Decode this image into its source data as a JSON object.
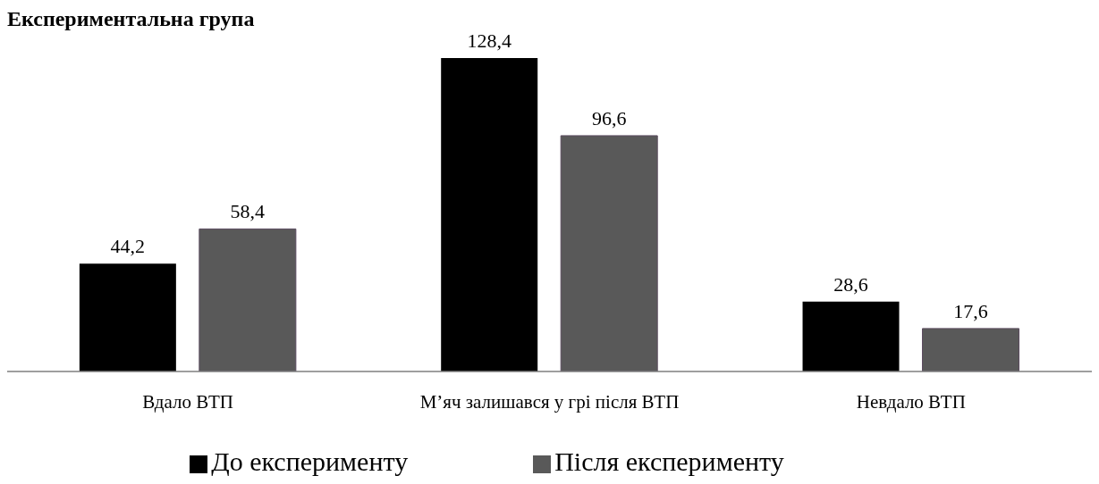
{
  "chart_data": {
    "type": "bar",
    "title": "Експериментальна група",
    "categories": [
      "Вдало ВТП",
      "М’яч залишався у грі після ВТП",
      "Невдало ВТП"
    ],
    "series": [
      {
        "name": "До експерименту",
        "color": "#000000",
        "values": [
          44.2,
          128.4,
          28.6
        ],
        "value_labels": [
          "44,2",
          "128,4",
          "28,6"
        ]
      },
      {
        "name": "Після експерименту",
        "color": "#595959",
        "values": [
          58.4,
          96.6,
          17.6
        ],
        "value_labels": [
          "58,4",
          "96,6",
          "17,6"
        ]
      }
    ],
    "legend": "bottom",
    "grid": false
  }
}
